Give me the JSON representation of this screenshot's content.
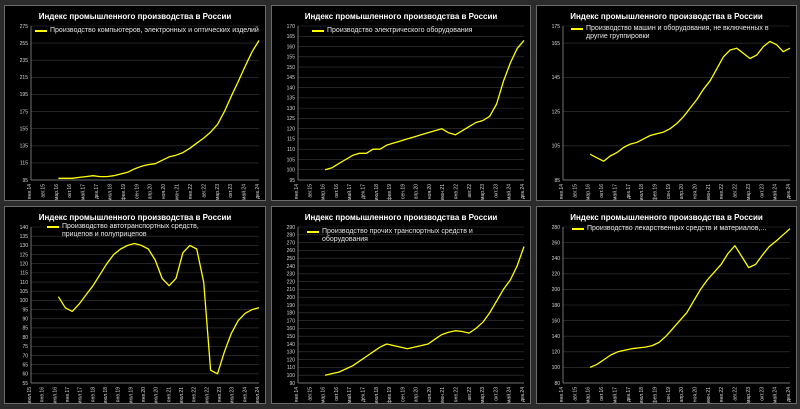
{
  "colors": {
    "line": "#ffff00",
    "background": "#000000",
    "grid": "#3a3a3a",
    "text": "#e6e6e6"
  },
  "chart_data": [
    {
      "type": "line",
      "title": "Индекс промышленного производства в России",
      "legend": "Производство компьютеров, электронных и оптических изделий",
      "yticks": [
        "95",
        "115",
        "135",
        "155",
        "175",
        "195",
        "215",
        "235",
        "255",
        "275"
      ],
      "xticks": [
        "янв.14",
        "авг.15",
        "мар.16",
        "окт.16",
        "май.17",
        "дек.17",
        "июл.18",
        "фев.19",
        "сен.19",
        "апр.20",
        "ноя.20",
        "июн.21",
        "янв.22",
        "авг.22",
        "мар.23",
        "окт.23",
        "май.24",
        "дек.24"
      ],
      "ylim": [
        95,
        275
      ],
      "grid": true,
      "series": [
        {
          "values": [
            97,
            97,
            97,
            98,
            99,
            100,
            99,
            99,
            100,
            102,
            104,
            108,
            111,
            113,
            114,
            118,
            122,
            124,
            127,
            132,
            138,
            144,
            151,
            160,
            175,
            193,
            210,
            228,
            245,
            258
          ]
        }
      ]
    },
    {
      "type": "line",
      "title": "Индекс промышленного производства в России",
      "legend": "Производство электрического оборудования",
      "yticks": [
        "95",
        "100",
        "105",
        "110",
        "115",
        "120",
        "125",
        "130",
        "135",
        "140",
        "145",
        "150",
        "155",
        "160",
        "165",
        "170"
      ],
      "xticks": [
        "янв.14",
        "авг.15",
        "мар.16",
        "окт.16",
        "май.17",
        "дек.17",
        "июл.18",
        "фев.19",
        "сен.19",
        "апр.20",
        "ноя.20",
        "июн.21",
        "янв.22",
        "авг.22",
        "мар.23",
        "окт.23",
        "май.24",
        "дек.24"
      ],
      "ylim": [
        95,
        170
      ],
      "grid": true,
      "series": [
        {
          "values": [
            100,
            101,
            103,
            105,
            107,
            108,
            108,
            110,
            110,
            112,
            113,
            114,
            115,
            116,
            117,
            118,
            119,
            120,
            118,
            117,
            119,
            121,
            123,
            124,
            126,
            132,
            143,
            152,
            159,
            163
          ]
        }
      ]
    },
    {
      "type": "line",
      "title": "Индекс промышленного производства в России",
      "legend": "Производство машин и оборудования, не включенных в другие группировки",
      "yticks": [
        "85",
        "105",
        "125",
        "145",
        "165",
        "175"
      ],
      "xticks": [
        "янв.14",
        "авг.15",
        "мар.16",
        "окт.16",
        "май.17",
        "дек.17",
        "июл.18",
        "фев.19",
        "сен.19",
        "апр.20",
        "ноя.20",
        "июн.21",
        "янв.22",
        "авг.22",
        "мар.23",
        "окт.23",
        "май.24",
        "дек.24"
      ],
      "ylim": [
        85,
        175
      ],
      "grid": true,
      "series": [
        {
          "values": [
            100,
            98,
            96,
            99,
            101,
            104,
            106,
            107,
            109,
            111,
            112,
            113,
            115,
            118,
            122,
            127,
            132,
            138,
            143,
            150,
            157,
            161,
            162,
            159,
            156,
            158,
            163,
            166,
            164,
            160,
            162
          ]
        }
      ]
    },
    {
      "type": "line",
      "title": "Индекс промышленного производства в России",
      "legend": "Производство автотранспортных средств, прицепов и полуприцепов",
      "yticks": [
        "55",
        "60",
        "65",
        "70",
        "75",
        "80",
        "85",
        "90",
        "95",
        "100",
        "105",
        "110",
        "115",
        "120",
        "125",
        "130",
        "135",
        "140"
      ],
      "xticks": [
        "июл.15",
        "янв.16",
        "июл.16",
        "янв.17",
        "июл.17",
        "янв.18",
        "июл.18",
        "янв.19",
        "июл.19",
        "янв.20",
        "июл.20",
        "янв.21",
        "июл.21",
        "янв.22",
        "июл.22",
        "янв.23",
        "июл.23",
        "янв.24",
        "июл.24"
      ],
      "ylim": [
        55,
        140
      ],
      "grid": true,
      "series": [
        {
          "values": [
            102,
            96,
            94,
            98,
            103,
            108,
            114,
            120,
            125,
            128,
            130,
            131,
            130,
            128,
            122,
            112,
            108,
            112,
            126,
            130,
            128,
            110,
            62,
            60,
            72,
            82,
            89,
            93,
            95,
            96
          ]
        }
      ]
    },
    {
      "type": "line",
      "title": "Индекс промышленного производства в России",
      "legend": "Производство прочих транспортных средств и оборудования",
      "yticks": [
        "90",
        "100",
        "110",
        "120",
        "130",
        "140",
        "150",
        "160",
        "170",
        "180",
        "190",
        "200",
        "210",
        "220",
        "230",
        "240",
        "250",
        "260",
        "270",
        "280",
        "290"
      ],
      "xticks": [
        "янв.14",
        "авг.15",
        "мар.16",
        "окт.16",
        "май.17",
        "дек.17",
        "июл.18",
        "фев.19",
        "сен.19",
        "апр.20",
        "ноя.20",
        "июн.21",
        "янв.22",
        "авг.22",
        "мар.23",
        "окт.23",
        "май.24",
        "дек.24"
      ],
      "ylim": [
        90,
        290
      ],
      "grid": true,
      "series": [
        {
          "values": [
            100,
            102,
            104,
            108,
            112,
            118,
            124,
            130,
            136,
            140,
            138,
            136,
            134,
            136,
            138,
            140,
            146,
            152,
            155,
            157,
            156,
            154,
            160,
            168,
            180,
            195,
            210,
            222,
            240,
            265
          ]
        }
      ]
    },
    {
      "type": "line",
      "title": "Индекс промышленного производства в России",
      "legend": "Производство лекарственных средств и материалов,...",
      "yticks": [
        "80",
        "100",
        "120",
        "140",
        "160",
        "180",
        "200",
        "220",
        "240",
        "260",
        "280"
      ],
      "xticks": [
        "янв.14",
        "авг.15",
        "мар.16",
        "окт.16",
        "май.17",
        "дек.17",
        "июл.18",
        "фев.19",
        "сен.19",
        "апр.20",
        "ноя.20",
        "июн.21",
        "янв.22",
        "авг.22",
        "мар.23",
        "окт.23",
        "май.24",
        "дек.24"
      ],
      "ylim": [
        80,
        280
      ],
      "grid": true,
      "series": [
        {
          "values": [
            100,
            104,
            110,
            116,
            120,
            122,
            124,
            125,
            126,
            128,
            132,
            140,
            150,
            160,
            170,
            185,
            200,
            212,
            222,
            232,
            246,
            256,
            242,
            228,
            232,
            244,
            255,
            262,
            270,
            278
          ]
        }
      ]
    }
  ]
}
